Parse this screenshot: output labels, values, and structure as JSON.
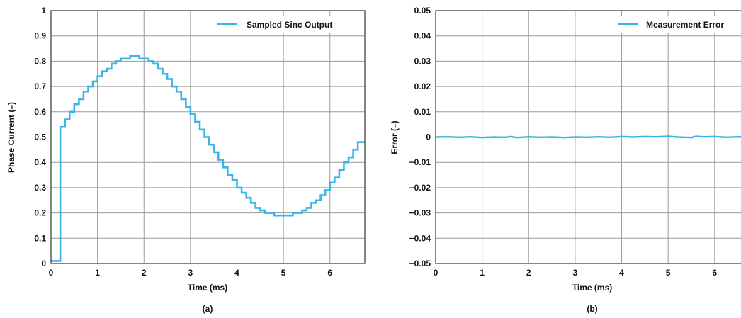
{
  "chart_data": [
    {
      "type": "line",
      "panel_label": "(a)",
      "xlabel": "Time (ms)",
      "ylabel": "Phase Current (–)",
      "xlim": [
        0,
        6.75
      ],
      "ylim": [
        0,
        1
      ],
      "xticks": [
        "0",
        "1",
        "2",
        "3",
        "4",
        "5",
        "6"
      ],
      "yticks": [
        "0",
        "0.1",
        "0.2",
        "0.3",
        "0.4",
        "0.5",
        "0.6",
        "0.7",
        "0.8",
        "0.9",
        "1"
      ],
      "grid": true,
      "legend_position": "top-right",
      "series_color": "#3cb4e6",
      "series": [
        {
          "name": "Sampled Sinc Output",
          "step": true,
          "x": [
            0,
            0.2,
            0.2,
            0.3,
            0.4,
            0.5,
            0.6,
            0.7,
            0.8,
            0.9,
            1.0,
            1.1,
            1.2,
            1.3,
            1.4,
            1.5,
            1.6,
            1.7,
            1.8,
            1.9,
            2.0,
            2.1,
            2.2,
            2.3,
            2.4,
            2.5,
            2.6,
            2.7,
            2.8,
            2.9,
            3.0,
            3.1,
            3.2,
            3.3,
            3.4,
            3.5,
            3.6,
            3.7,
            3.8,
            3.9,
            4.0,
            4.1,
            4.2,
            4.3,
            4.4,
            4.5,
            4.6,
            4.7,
            4.8,
            4.9,
            5.0,
            5.1,
            5.2,
            5.3,
            5.4,
            5.5,
            5.6,
            5.7,
            5.8,
            5.9,
            6.0,
            6.1,
            6.2,
            6.3,
            6.4,
            6.5,
            6.6,
            6.7,
            6.75
          ],
          "y": [
            0.01,
            0.01,
            0.54,
            0.57,
            0.6,
            0.63,
            0.65,
            0.68,
            0.7,
            0.72,
            0.74,
            0.76,
            0.77,
            0.79,
            0.8,
            0.81,
            0.81,
            0.82,
            0.82,
            0.81,
            0.81,
            0.8,
            0.79,
            0.77,
            0.75,
            0.73,
            0.7,
            0.68,
            0.65,
            0.62,
            0.59,
            0.56,
            0.53,
            0.5,
            0.47,
            0.44,
            0.41,
            0.38,
            0.35,
            0.33,
            0.3,
            0.28,
            0.26,
            0.24,
            0.22,
            0.21,
            0.2,
            0.2,
            0.19,
            0.19,
            0.19,
            0.19,
            0.2,
            0.2,
            0.21,
            0.22,
            0.24,
            0.25,
            0.27,
            0.29,
            0.32,
            0.34,
            0.37,
            0.4,
            0.42,
            0.45,
            0.48,
            0.48,
            0.48
          ]
        }
      ]
    },
    {
      "type": "line",
      "panel_label": "(b)",
      "xlabel": "Time (ms)",
      "ylabel": "Error (–)",
      "xlim": [
        0,
        6.75
      ],
      "ylim": [
        -0.05,
        0.05
      ],
      "xticks": [
        "0",
        "1",
        "2",
        "3",
        "4",
        "5",
        "6"
      ],
      "yticks": [
        "−0.05",
        "−0.04",
        "−0.03",
        "−0.02",
        "−0.01",
        "0",
        "0.01",
        "0.02",
        "0.03",
        "0.04",
        "0.05"
      ],
      "grid": true,
      "legend_position": "top-right",
      "series_color": "#3cb4e6",
      "series": [
        {
          "name": "Measurement Error",
          "step": false,
          "x": [
            0,
            0.25,
            0.5,
            0.75,
            1.0,
            1.25,
            1.5,
            1.6,
            1.75,
            2.0,
            2.25,
            2.5,
            2.75,
            3.0,
            3.25,
            3.5,
            3.75,
            4.0,
            4.25,
            4.5,
            4.75,
            5.0,
            5.2,
            5.5,
            5.6,
            5.75,
            6.0,
            6.25,
            6.5,
            6.75
          ],
          "y": [
            0.0,
            0.0001,
            -0.0001,
            0.0001,
            -0.0002,
            0.0,
            -0.0001,
            0.0002,
            -0.0002,
            0.0001,
            -0.0001,
            0.0,
            -0.0002,
            0.0,
            -0.0001,
            0.0001,
            -0.0001,
            0.0002,
            0.0,
            0.0002,
            0.0001,
            0.0003,
            0.0,
            -0.0002,
            0.0003,
            0.0001,
            0.0002,
            -0.0001,
            0.0001,
            0.0
          ]
        }
      ]
    }
  ]
}
